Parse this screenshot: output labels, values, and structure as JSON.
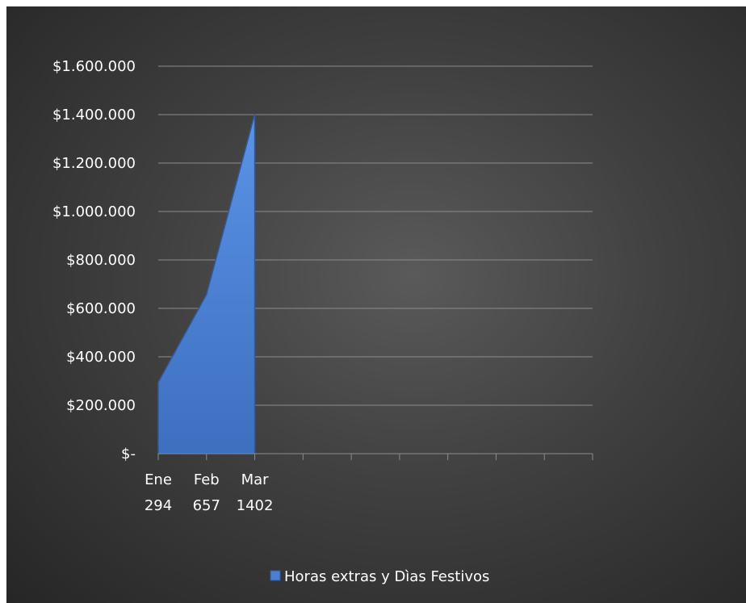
{
  "chart_data": {
    "type": "area",
    "categories": [
      "Ene\n294",
      "Feb\n657",
      "Mar\n1402",
      "",
      "",
      "",
      "",
      "",
      ""
    ],
    "category_lines": [
      [
        "Ene",
        "294"
      ],
      [
        "Feb",
        "657"
      ],
      [
        "Mar",
        "1402"
      ],
      [],
      [],
      [],
      [],
      [],
      []
    ],
    "series": [
      {
        "name": "Horas extras y Dìas Festivos",
        "values": [
          294000,
          657000,
          1402000,
          null,
          null,
          null,
          null,
          null,
          null
        ],
        "color": "#4a7fd1"
      }
    ],
    "ylim": [
      0,
      1600000
    ],
    "yticks": [
      0,
      200000,
      400000,
      600000,
      800000,
      1000000,
      1200000,
      1400000,
      1600000
    ],
    "ytick_labels": [
      "$-",
      "$200.000",
      "$400.000",
      "$600.000",
      "$800.000",
      "$1.000.000",
      "$1.200.000",
      "$1.400.000",
      "$1.600.000"
    ],
    "grid": true,
    "legend_position": "bottom",
    "colors": {
      "background": "#404040",
      "gridline": "#8c8c8c",
      "text": "#ffffff",
      "area": "#4a7fd1"
    }
  }
}
